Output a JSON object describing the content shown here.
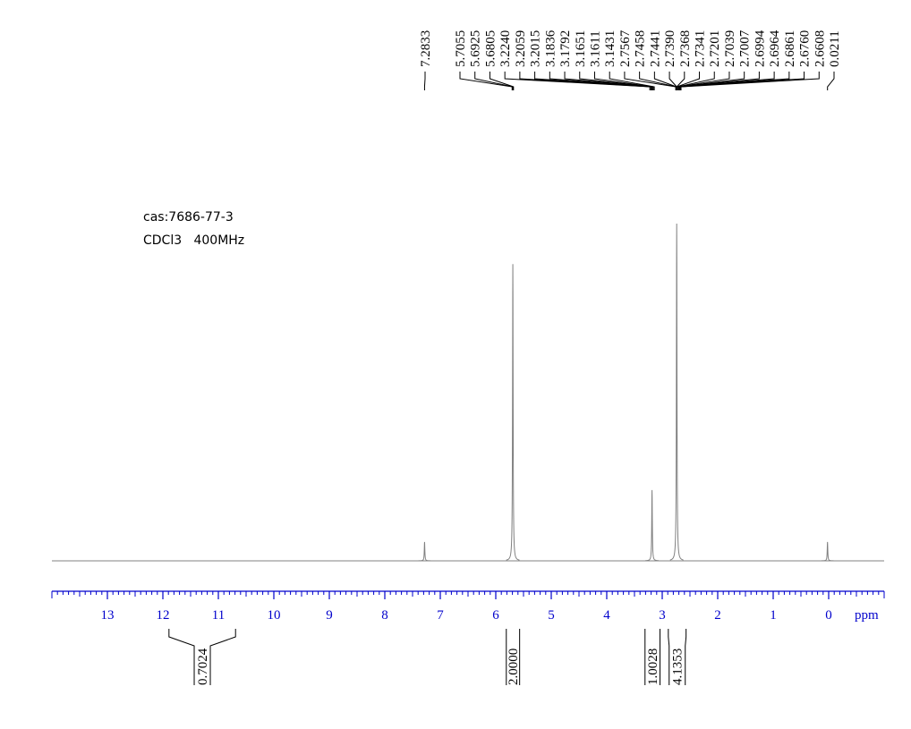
{
  "chart_data": {
    "type": "nmr",
    "annotations": [
      "cas:7686-77-3",
      "CDCl3   400MHz"
    ],
    "x_label": "ppm",
    "xlim": [
      14,
      -1
    ],
    "xticks": [
      13,
      12,
      11,
      10,
      9,
      8,
      7,
      6,
      5,
      4,
      3,
      2,
      1,
      0
    ],
    "ylim": [
      0,
      100
    ],
    "color": "#808080",
    "tick_color": "#0000cc",
    "signals": {
      "x": [
        7.2833,
        5.6925,
        3.1836,
        2.739,
        0.0211
      ],
      "values": [
        5.6,
        88,
        21,
        100,
        5.6
      ]
    },
    "peak_labels": {
      "values": [
        7.2833,
        5.7055,
        5.6925,
        5.6805,
        3.224,
        3.2059,
        3.2015,
        3.1836,
        3.1792,
        3.1651,
        3.1611,
        3.1431,
        2.7567,
        2.7458,
        2.7441,
        2.739,
        2.7368,
        2.7341,
        2.7201,
        2.7039,
        2.7007,
        2.6994,
        2.6964,
        2.6861,
        2.676,
        2.6608,
        0.0211
      ],
      "value_labels": [
        "7.2833",
        "5.7055",
        "5.6925",
        "5.6805",
        "3.2240",
        "3.2059",
        "3.2015",
        "3.1836",
        "3.1792",
        "3.1651",
        "3.1611",
        "3.1431",
        "2.7567",
        "2.7458",
        "2.7441",
        "2.7390",
        "2.7368",
        "2.7341",
        "2.7201",
        "2.7039",
        "2.7007",
        "2.6994",
        "2.6964",
        "2.6861",
        "2.6760",
        "2.6608",
        "0.0211"
      ]
    },
    "integrals": {
      "ranges": [
        [
          11.89,
          10.69
        ],
        [
          5.81,
          5.57
        ],
        [
          3.31,
          3.04
        ],
        [
          2.89,
          2.57
        ]
      ],
      "values": [
        0.7024,
        2,
        1.0028,
        4.1353
      ],
      "value_labels": [
        "0.7024",
        "2.0000",
        "1.0028",
        "4.1353"
      ]
    }
  }
}
